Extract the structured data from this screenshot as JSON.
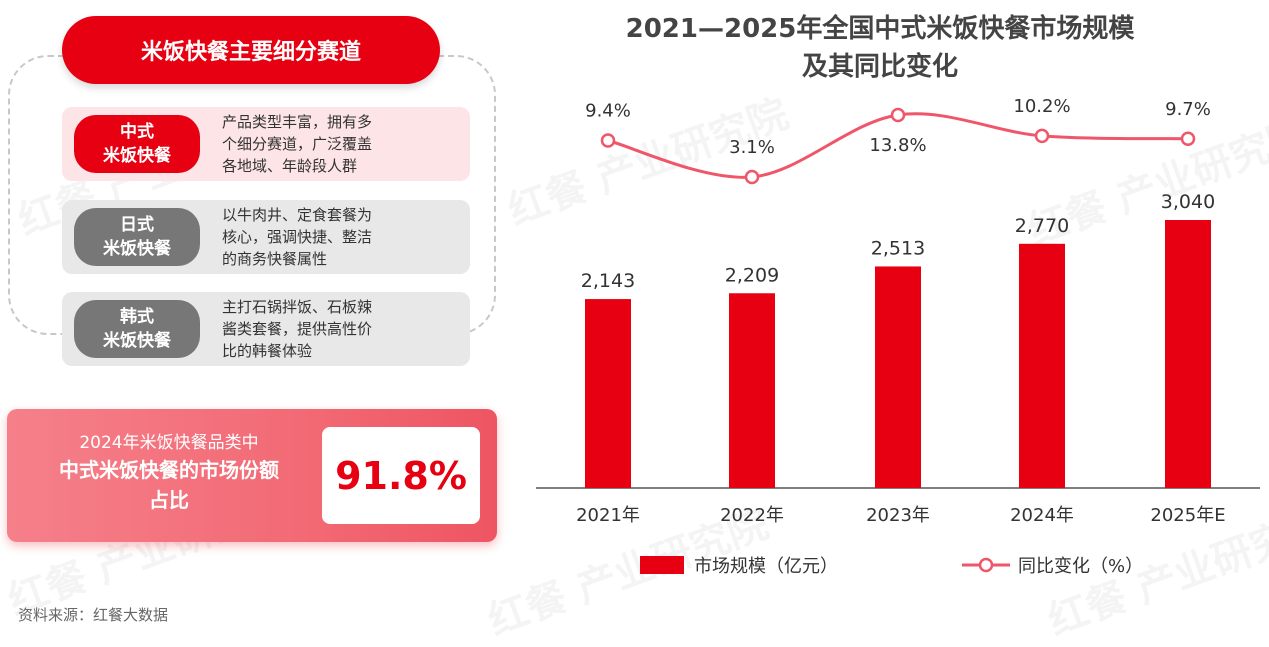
{
  "left_panel": {
    "title": "米饭快餐主要细分赛道",
    "segments": [
      {
        "name_line1": "中式",
        "name_line2": "米饭快餐",
        "desc_lines": [
          "产品类型丰富，拥有多",
          "个细分赛道，广泛覆盖",
          "各地域、年龄段人群"
        ]
      },
      {
        "name_line1": "日式",
        "name_line2": "米饭快餐",
        "desc_lines": [
          "以牛肉井、定食套餐为",
          "核心，强调快捷、整洁",
          "的商务快餐属性"
        ]
      },
      {
        "name_line1": "韩式",
        "name_line2": "米饭快餐",
        "desc_lines": [
          "主打石锅拌饭、石板辣",
          "酱类套餐，提供高性价",
          "比的韩餐体验"
        ]
      }
    ]
  },
  "share_card": {
    "line1": "2024年米饭快餐品类中",
    "line2": "中式米饭快餐的市场份额",
    "line3": "占比",
    "value": "91.8%"
  },
  "watermark": "红餐 产业研究院",
  "source": "资料来源：红餐大数据",
  "chart_data": {
    "type": "bar",
    "title_line1": "2021—2025年全国中式米饭快餐市场规模",
    "title_line2": "及其同比变化",
    "categories": [
      "2021年",
      "2022年",
      "2023年",
      "2024年",
      "2025年E"
    ],
    "series": [
      {
        "name": "市场规模（亿元）",
        "type": "bar",
        "values": [
          2143,
          2209,
          2513,
          2770,
          3040
        ],
        "labels": [
          "2,143",
          "2,209",
          "2,513",
          "2,770",
          "3,040"
        ],
        "color": "#e60012"
      },
      {
        "name": "同比变化（%）",
        "type": "line",
        "values": [
          9.4,
          3.1,
          13.8,
          10.2,
          9.7
        ],
        "labels": [
          "9.4%",
          "3.1%",
          "13.8%",
          "10.2%",
          "9.7%"
        ],
        "color": "#f0566a"
      }
    ],
    "bar_ylim": [
      0,
      3400
    ],
    "line_ylim": [
      0,
      16
    ],
    "grid": false,
    "legend": "bottom"
  }
}
